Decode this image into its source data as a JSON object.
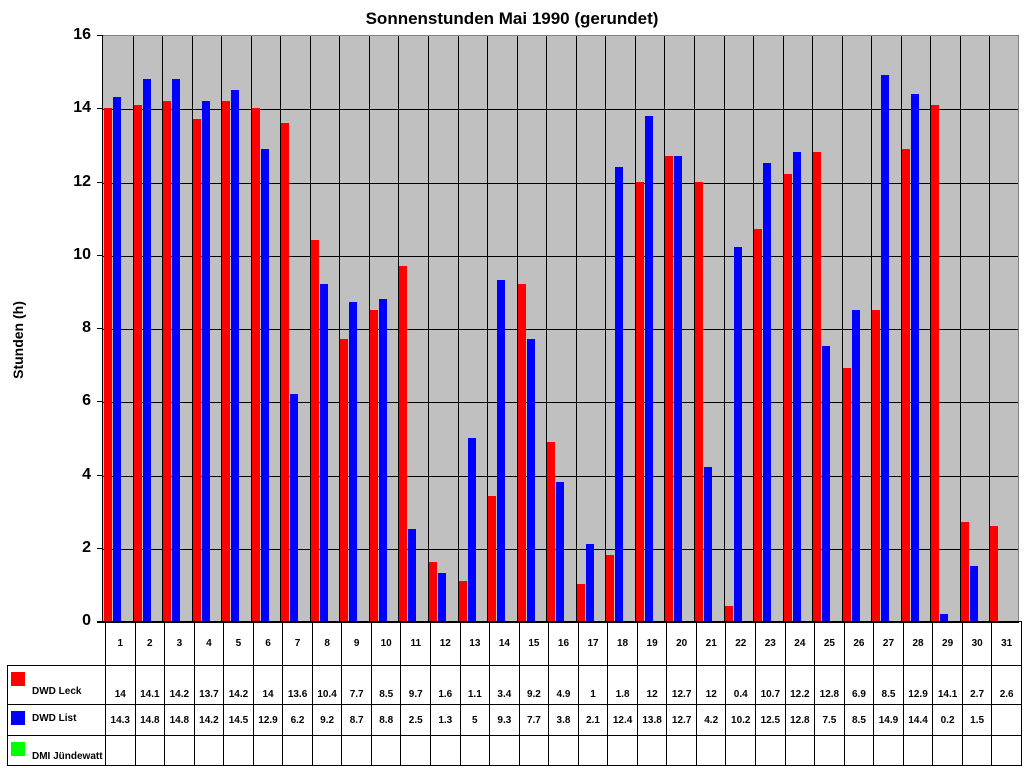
{
  "chart_data": {
    "type": "bar",
    "title": "Sonnenstunden Mai 1990 (gerundet)",
    "xlabel": "",
    "ylabel": "Stunden (h)",
    "ylim": [
      0,
      16
    ],
    "yticks": [
      0,
      2,
      4,
      6,
      8,
      10,
      12,
      14,
      16
    ],
    "grid": true,
    "legend_position": "data-table-left",
    "categories": [
      "1",
      "2",
      "3",
      "4",
      "5",
      "6",
      "7",
      "8",
      "9",
      "10",
      "11",
      "12",
      "13",
      "14",
      "15",
      "16",
      "17",
      "18",
      "19",
      "20",
      "21",
      "22",
      "23",
      "24",
      "25",
      "26",
      "27",
      "28",
      "29",
      "30",
      "31"
    ],
    "series": [
      {
        "name": "DWD Leck",
        "color": "#ff0000",
        "values": [
          14,
          14.1,
          14.2,
          13.7,
          14.2,
          14,
          13.6,
          10.4,
          7.7,
          8.5,
          9.7,
          1.6,
          1.1,
          3.4,
          9.2,
          4.9,
          1,
          1.8,
          12,
          12.7,
          12,
          0.4,
          10.7,
          12.2,
          12.8,
          6.9,
          8.5,
          12.9,
          14.1,
          2.7,
          2.6
        ]
      },
      {
        "name": "DWD List",
        "color": "#0000ff",
        "values": [
          14.3,
          14.8,
          14.8,
          14.2,
          14.5,
          12.9,
          6.2,
          9.2,
          8.7,
          8.8,
          2.5,
          1.3,
          5,
          9.3,
          7.7,
          3.8,
          2.1,
          12.4,
          13.8,
          12.7,
          4.2,
          10.2,
          12.5,
          12.8,
          7.5,
          8.5,
          14.9,
          14.4,
          0.2,
          1.5,
          null
        ]
      },
      {
        "name": "DMI Jündewatt",
        "color": "#00ff00",
        "values": [
          null,
          null,
          null,
          null,
          null,
          null,
          null,
          null,
          null,
          null,
          null,
          null,
          null,
          null,
          null,
          null,
          null,
          null,
          null,
          null,
          null,
          null,
          null,
          null,
          null,
          null,
          null,
          null,
          null,
          null,
          null
        ]
      }
    ]
  },
  "colors": {
    "plot_bg": "#c0c0c0",
    "leck": "#ff0000",
    "list": "#0000ff",
    "juendewatt": "#00ff00"
  }
}
